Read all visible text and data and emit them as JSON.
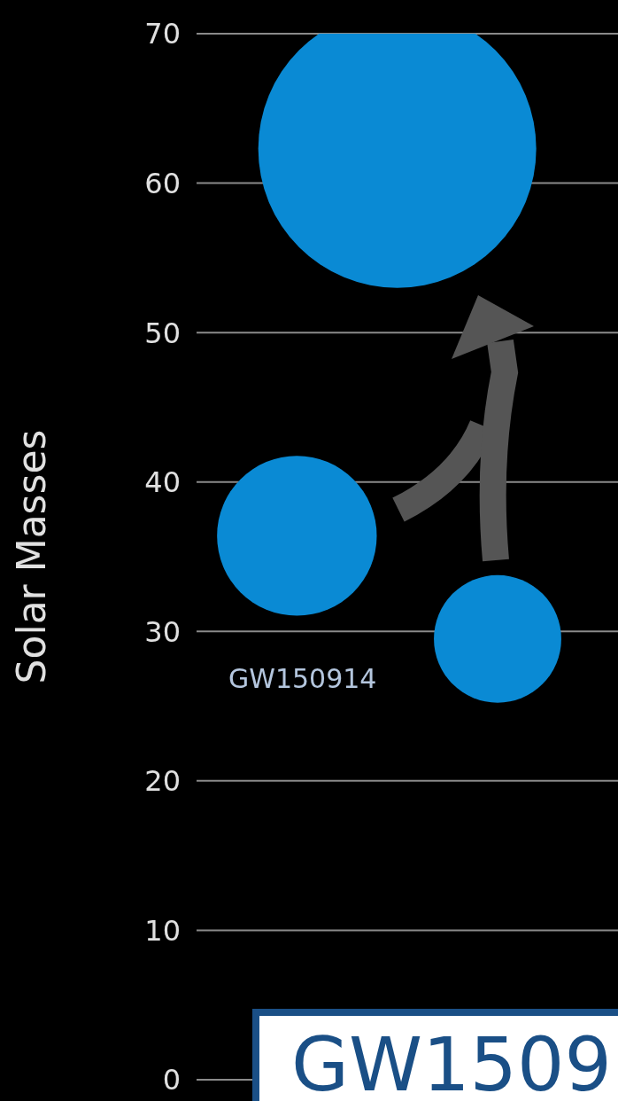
{
  "chart_data": {
    "type": "bubble",
    "ylabel": "Solar Masses",
    "categories": [
      null,
      null,
      null
    ],
    "values": [
      36.4,
      62.3,
      29.5
    ],
    "sizes": [
      0.33,
      1,
      0.21
    ],
    "color": "#0a8ad4",
    "ylim": [
      0,
      70
    ],
    "yticks": [
      0,
      10,
      20,
      30,
      40,
      50,
      60,
      70
    ],
    "grid": "y",
    "annotations": [
      "GW150914",
      "GW1509"
    ]
  }
}
